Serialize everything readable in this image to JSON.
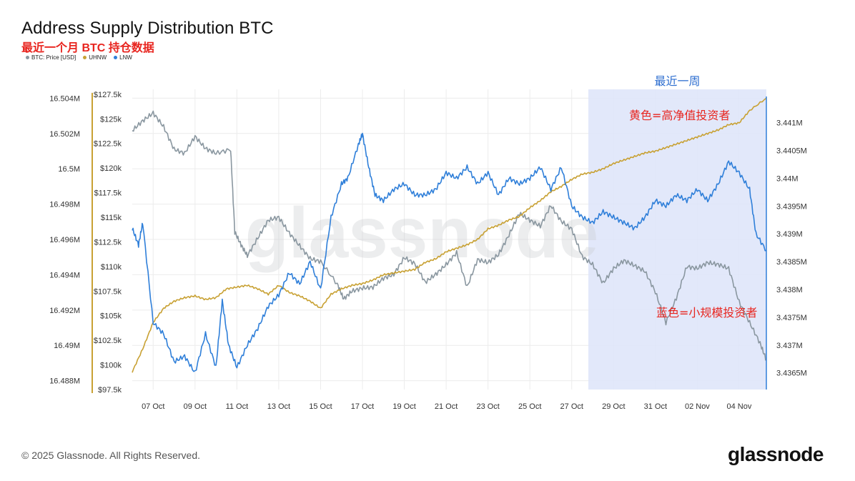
{
  "title": "Address Supply Distribution BTC",
  "subtitle": "最近一个月 BTC 持仓数据",
  "legend": [
    {
      "label": "BTC: Price [USD]",
      "color": "#8a97a0"
    },
    {
      "label": "UHNW",
      "color": "#c8a133"
    },
    {
      "label": "LNW",
      "color": "#2f7fd9"
    }
  ],
  "footer": "© 2025 Glassnode. All Rights Reserved.",
  "brand": "glassnode",
  "chart_data": {
    "type": "line",
    "x_ticks": [
      "07 Oct",
      "09 Oct",
      "11 Oct",
      "13 Oct",
      "15 Oct",
      "17 Oct",
      "19 Oct",
      "21 Oct",
      "23 Oct",
      "25 Oct",
      "27 Oct",
      "29 Oct",
      "31 Oct",
      "02 Nov",
      "04 Nov"
    ],
    "x_range": [
      "2025-10-06",
      "2025-11-05"
    ],
    "left_axis": {
      "label": "",
      "ticks": [
        "16.504M",
        "16.502M",
        "16.5M",
        "16.498M",
        "16.496M",
        "16.494M",
        "16.492M",
        "16.49M",
        "16.488M"
      ],
      "ylim": [
        16.4875,
        16.5045
      ]
    },
    "price_axis": {
      "label": "",
      "ticks": [
        "$127.5k",
        "$125k",
        "$122.5k",
        "$120k",
        "$117.5k",
        "$115k",
        "$112.5k",
        "$110k",
        "$107.5k",
        "$105k",
        "$102.5k",
        "$100k",
        "$97.5k"
      ],
      "ylim": [
        97500,
        128000
      ]
    },
    "right_axis": {
      "label": "",
      "ticks": [
        "3.441M",
        "3.4405M",
        "3.44M",
        "3.4395M",
        "3.439M",
        "3.4385M",
        "3.438M",
        "3.4375M",
        "3.437M",
        "3.4365M"
      ],
      "ylim": [
        3.4362,
        3.4416
      ]
    },
    "highlight": {
      "label": "最近一周",
      "from": "2025-10-28",
      "to": "2025-11-05"
    },
    "annotations": [
      {
        "text": "黄色=高净值投资者",
        "color": "#e8251f"
      },
      {
        "text": "蓝色=小规模投资者",
        "color": "#e8251f"
      }
    ],
    "series": [
      {
        "name": "BTC: Price [USD]",
        "color": "#8a97a0",
        "axis": "price",
        "values": [
          [
            0,
            123800
          ],
          [
            0.5,
            124800
          ],
          [
            1,
            125600
          ],
          [
            1.5,
            124200
          ],
          [
            2,
            121900
          ],
          [
            2.5,
            121500
          ],
          [
            3,
            123200
          ],
          [
            3.5,
            122000
          ],
          [
            4,
            121500
          ],
          [
            4.7,
            121900
          ],
          [
            4.9,
            113500
          ],
          [
            5.2,
            112200
          ],
          [
            5.5,
            111100
          ],
          [
            6,
            112900
          ],
          [
            6.5,
            114700
          ],
          [
            7,
            115000
          ],
          [
            7.5,
            113400
          ],
          [
            8,
            112100
          ],
          [
            8.5,
            110800
          ],
          [
            9,
            110500
          ],
          [
            9.8,
            108200
          ],
          [
            10.1,
            106700
          ],
          [
            10.5,
            107500
          ],
          [
            11,
            107800
          ],
          [
            11.5,
            107900
          ],
          [
            12,
            108800
          ],
          [
            12.5,
            109200
          ],
          [
            13,
            110900
          ],
          [
            13.5,
            110300
          ],
          [
            14,
            108400
          ],
          [
            14.5,
            109200
          ],
          [
            15,
            110200
          ],
          [
            15.5,
            111400
          ],
          [
            16,
            107900
          ],
          [
            16.5,
            110700
          ],
          [
            17,
            110400
          ],
          [
            17.5,
            111200
          ],
          [
            18,
            113200
          ],
          [
            18.5,
            115400
          ],
          [
            19,
            114700
          ],
          [
            19.5,
            114100
          ],
          [
            20,
            116200
          ],
          [
            20.5,
            114600
          ],
          [
            21,
            113800
          ],
          [
            21.5,
            111000
          ],
          [
            22,
            110200
          ],
          [
            22.5,
            108300
          ],
          [
            23,
            109800
          ],
          [
            23.5,
            110600
          ],
          [
            24,
            110100
          ],
          [
            24.5,
            109500
          ],
          [
            25,
            107400
          ],
          [
            25.5,
            104300
          ],
          [
            26,
            106800
          ],
          [
            26.5,
            110000
          ],
          [
            27,
            109800
          ],
          [
            27.5,
            110400
          ],
          [
            28,
            110200
          ],
          [
            28.5,
            109800
          ],
          [
            29,
            106400
          ],
          [
            29.5,
            104300
          ],
          [
            30,
            102200
          ],
          [
            30.3,
            100500
          ]
        ]
      },
      {
        "name": "UHNW",
        "color": "#c8a133",
        "axis": "left",
        "values": [
          [
            0,
            16.4885
          ],
          [
            0.5,
            16.4898
          ],
          [
            1,
            16.4913
          ],
          [
            1.5,
            16.4921
          ],
          [
            2,
            16.4925
          ],
          [
            2.5,
            16.4927
          ],
          [
            3,
            16.4928
          ],
          [
            3.5,
            16.4926
          ],
          [
            4,
            16.4927
          ],
          [
            4.5,
            16.4932
          ],
          [
            5,
            16.4933
          ],
          [
            5.5,
            16.4934
          ],
          [
            6,
            16.4932
          ],
          [
            6.5,
            16.4929
          ],
          [
            7,
            16.4934
          ],
          [
            7.5,
            16.493
          ],
          [
            8,
            16.4928
          ],
          [
            8.5,
            16.4925
          ],
          [
            9,
            16.4921
          ],
          [
            9.5,
            16.4929
          ],
          [
            10,
            16.4932
          ],
          [
            10.5,
            16.4934
          ],
          [
            11,
            16.4935
          ],
          [
            11.5,
            16.4937
          ],
          [
            12,
            16.494
          ],
          [
            12.5,
            16.4941
          ],
          [
            13,
            16.4942
          ],
          [
            13.5,
            16.4943
          ],
          [
            14,
            16.4947
          ],
          [
            14.5,
            16.4949
          ],
          [
            15,
            16.4953
          ],
          [
            15.5,
            16.4955
          ],
          [
            16,
            16.4957
          ],
          [
            16.5,
            16.496
          ],
          [
            17,
            16.4966
          ],
          [
            17.5,
            16.4968
          ],
          [
            18,
            16.4971
          ],
          [
            18.5,
            16.4973
          ],
          [
            19,
            16.4978
          ],
          [
            19.5,
            16.4982
          ],
          [
            20,
            16.4987
          ],
          [
            20.5,
            16.499
          ],
          [
            21,
            16.4994
          ],
          [
            21.5,
            16.4997
          ],
          [
            22,
            16.4998
          ],
          [
            22.5,
            16.5
          ],
          [
            23,
            16.5003
          ],
          [
            23.5,
            16.5005
          ],
          [
            24,
            16.5007
          ],
          [
            24.5,
            16.5009
          ],
          [
            25,
            16.501
          ],
          [
            25.5,
            16.5012
          ],
          [
            26,
            16.5014
          ],
          [
            26.5,
            16.5016
          ],
          [
            27,
            16.5018
          ],
          [
            27.5,
            16.502
          ],
          [
            28,
            16.5022
          ],
          [
            28.5,
            16.5025
          ],
          [
            29,
            16.5026
          ],
          [
            29.5,
            16.5033
          ],
          [
            30.3,
            16.504
          ]
        ]
      },
      {
        "name": "LNW",
        "color": "#2f7fd9",
        "axis": "right",
        "values": [
          [
            0,
            3.4391
          ],
          [
            0.3,
            3.4388
          ],
          [
            0.5,
            3.4392
          ],
          [
            1,
            3.4374
          ],
          [
            1.5,
            3.4372
          ],
          [
            2,
            3.4367
          ],
          [
            2.5,
            3.4368
          ],
          [
            3,
            3.4365
          ],
          [
            3.5,
            3.4372
          ],
          [
            4,
            3.4366
          ],
          [
            4.3,
            3.4378
          ],
          [
            4.6,
            3.437
          ],
          [
            5,
            3.4366
          ],
          [
            5.5,
            3.437
          ],
          [
            6,
            3.4373
          ],
          [
            6.5,
            3.4377
          ],
          [
            7,
            3.4379
          ],
          [
            7.5,
            3.4383
          ],
          [
            8,
            3.4381
          ],
          [
            8.5,
            3.4385
          ],
          [
            9,
            3.438
          ],
          [
            9.5,
            3.4393
          ],
          [
            10,
            3.4399
          ],
          [
            10.3,
            3.44
          ],
          [
            10.8,
            3.4406
          ],
          [
            11,
            3.4408
          ],
          [
            11.3,
            3.4402
          ],
          [
            11.6,
            3.4397
          ],
          [
            12,
            3.4396
          ],
          [
            12.5,
            3.4398
          ],
          [
            13,
            3.4399
          ],
          [
            13.5,
            3.4397
          ],
          [
            14,
            3.4397
          ],
          [
            14.5,
            3.4398
          ],
          [
            15,
            3.4401
          ],
          [
            15.5,
            3.44
          ],
          [
            16,
            3.4402
          ],
          [
            16.5,
            3.4399
          ],
          [
            17,
            3.4401
          ],
          [
            17.5,
            3.4397
          ],
          [
            18,
            3.44
          ],
          [
            18.5,
            3.4399
          ],
          [
            19,
            3.44
          ],
          [
            19.5,
            3.4402
          ],
          [
            20,
            3.4398
          ],
          [
            20.5,
            3.4402
          ],
          [
            21,
            3.4395
          ],
          [
            21.5,
            3.4393
          ],
          [
            22,
            3.4392
          ],
          [
            22.5,
            3.4394
          ],
          [
            23,
            3.4393
          ],
          [
            23.5,
            3.4392
          ],
          [
            24,
            3.4391
          ],
          [
            24.5,
            3.4393
          ],
          [
            25,
            3.4396
          ],
          [
            25.5,
            3.4395
          ],
          [
            26,
            3.4397
          ],
          [
            26.5,
            3.4396
          ],
          [
            27,
            3.4398
          ],
          [
            27.5,
            3.4396
          ],
          [
            28,
            3.4399
          ],
          [
            28.5,
            3.4403
          ],
          [
            29,
            3.4401
          ],
          [
            29.5,
            3.4398
          ],
          [
            29.8,
            3.439
          ],
          [
            30.3,
            3.4387
          ]
        ]
      }
    ]
  }
}
